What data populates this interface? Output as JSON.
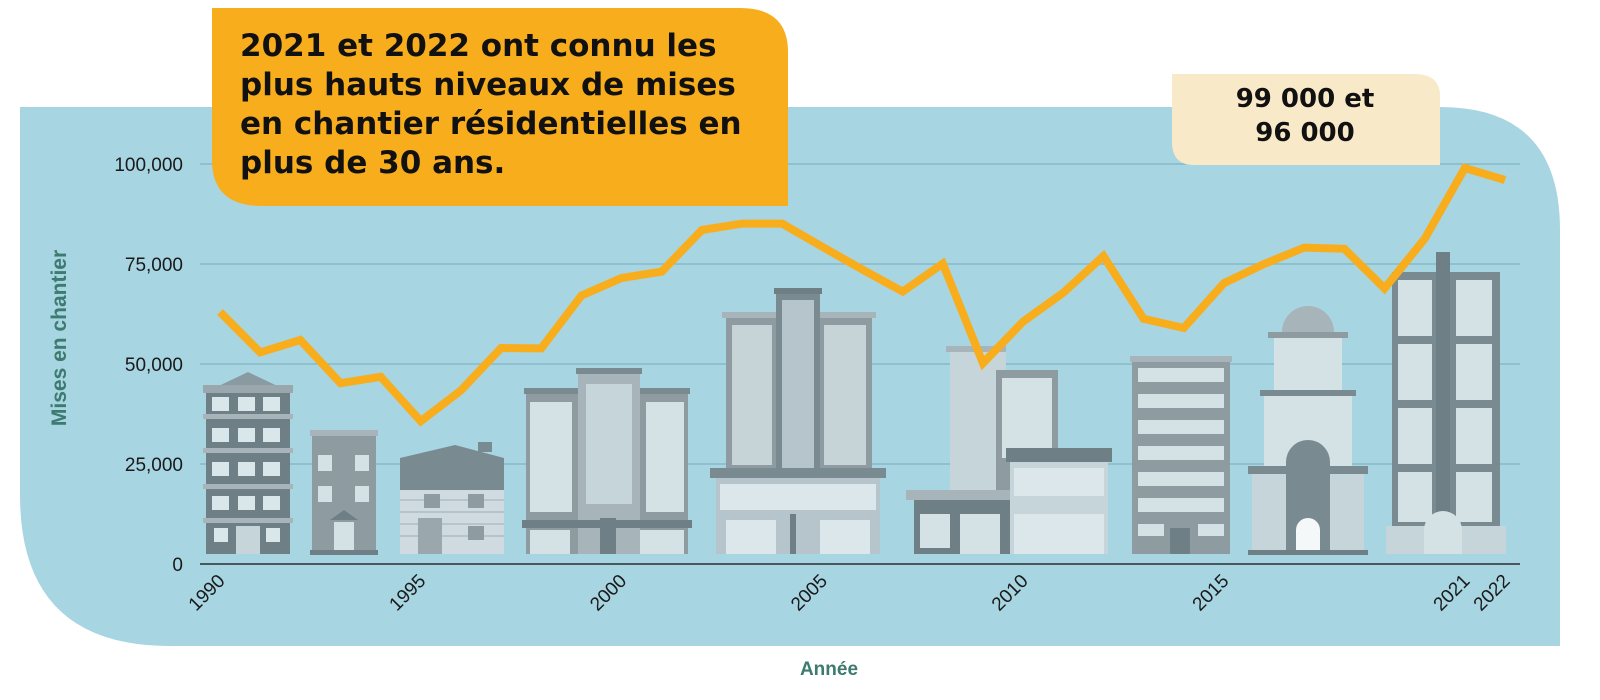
{
  "chart_data": {
    "type": "line",
    "title": "",
    "xlabel": "Année",
    "ylabel": "Mises en chantier",
    "xlim": [
      1990,
      2022
    ],
    "ylim": [
      0,
      100000
    ],
    "y_ticks": [
      0,
      25000,
      50000,
      75000,
      100000
    ],
    "y_tick_labels": [
      "0",
      "25,000",
      "50,000",
      "75,000",
      "100,000"
    ],
    "x_ticks": [
      1990,
      1995,
      2000,
      2005,
      2010,
      2015,
      2021,
      2022
    ],
    "x_tick_labels": [
      "1990",
      "1995",
      "2000",
      "2005",
      "2010",
      "2015",
      "2021",
      "2022"
    ],
    "grid": true,
    "series": [
      {
        "x": [
          1990,
          1991,
          1992,
          1993,
          1994,
          1995,
          1996,
          1997,
          1998,
          1999,
          2000,
          2001,
          2002,
          2003,
          2004,
          2005,
          2006,
          2007,
          2008,
          2009,
          2010,
          2011,
          2012,
          2013,
          2014,
          2015,
          2016,
          2017,
          2018,
          2019,
          2020,
          2021,
          2022
        ],
        "values": [
          63000,
          52900,
          56000,
          45200,
          46800,
          35700,
          43400,
          54000,
          53900,
          67100,
          71500,
          73100,
          83500,
          85100,
          85100,
          79300,
          73600,
          68100,
          75100,
          50200,
          60600,
          67800,
          77000,
          61300,
          59000,
          70200,
          75000,
          79100,
          78800,
          68900,
          81300,
          99000,
          96000
        ]
      }
    ],
    "annotations": [
      "2021 et 2022 ont connu les plus hauts niveaux de mises en chantier résidentielles en plus de 30 ans.",
      "99 000 et 96 000"
    ],
    "colors": {
      "background_panel": "#a8d5e2",
      "line": "#f8ad1c",
      "headline_box": "#f8ad1c",
      "value_box": "#f8e9c8",
      "axis_label": "#3d7a6f",
      "gridline": "#7fb3c3"
    }
  },
  "headline_callout": {
    "text": "2021 et 2022 ont connu les plus hauts niveaux de mises en chantier résidentielles en plus de 30 ans."
  },
  "values_callout": {
    "line1": "99 000 et",
    "line2": "96 000"
  },
  "illustration": {
    "icon": "city-buildings-illustration"
  }
}
